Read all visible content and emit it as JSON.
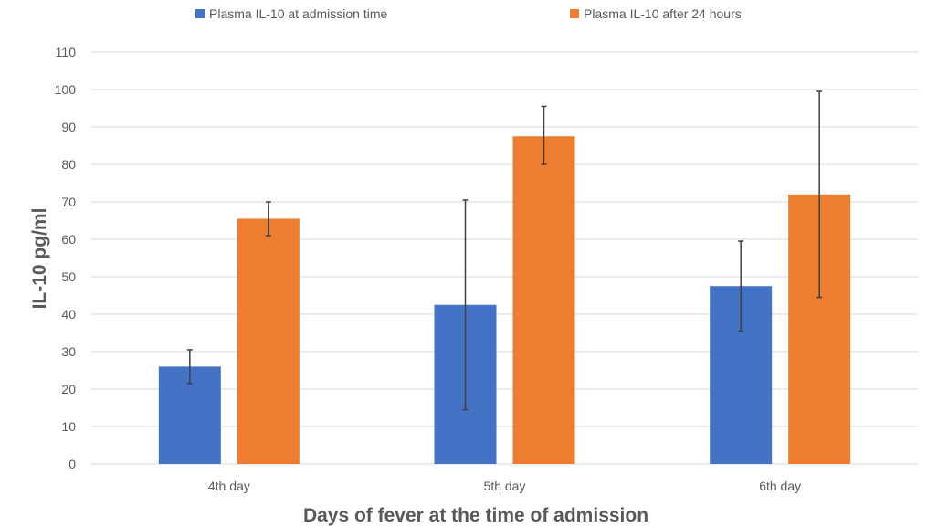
{
  "chart_data": {
    "type": "bar",
    "categories": [
      "4th day",
      "5th day",
      "6th day"
    ],
    "series": [
      {
        "name": "Plasma IL-10 at admission time",
        "color": "#4472C4",
        "values": [
          26,
          42.5,
          47.5
        ],
        "error_low": [
          21.5,
          14.5,
          35.5
        ],
        "error_high": [
          30.5,
          70.5,
          59.5
        ]
      },
      {
        "name": "Plasma IL-10 after 24 hours",
        "color": "#ED7D31",
        "values": [
          65.5,
          87.5,
          72
        ],
        "error_low": [
          61,
          80,
          44.5
        ],
        "error_high": [
          70,
          95.5,
          99.5
        ]
      }
    ],
    "xlabel": "Days of fever at the time of admission",
    "ylabel": "IL-10 pg/ml",
    "ylim": [
      0,
      110
    ],
    "yticks": [
      0,
      10,
      20,
      30,
      40,
      50,
      60,
      70,
      80,
      90,
      100,
      110
    ],
    "grid": true,
    "legend_position": "top-center",
    "gridline_color": "#D9D9D9",
    "text_color": "#595959",
    "error_bar_color": "#404040"
  }
}
